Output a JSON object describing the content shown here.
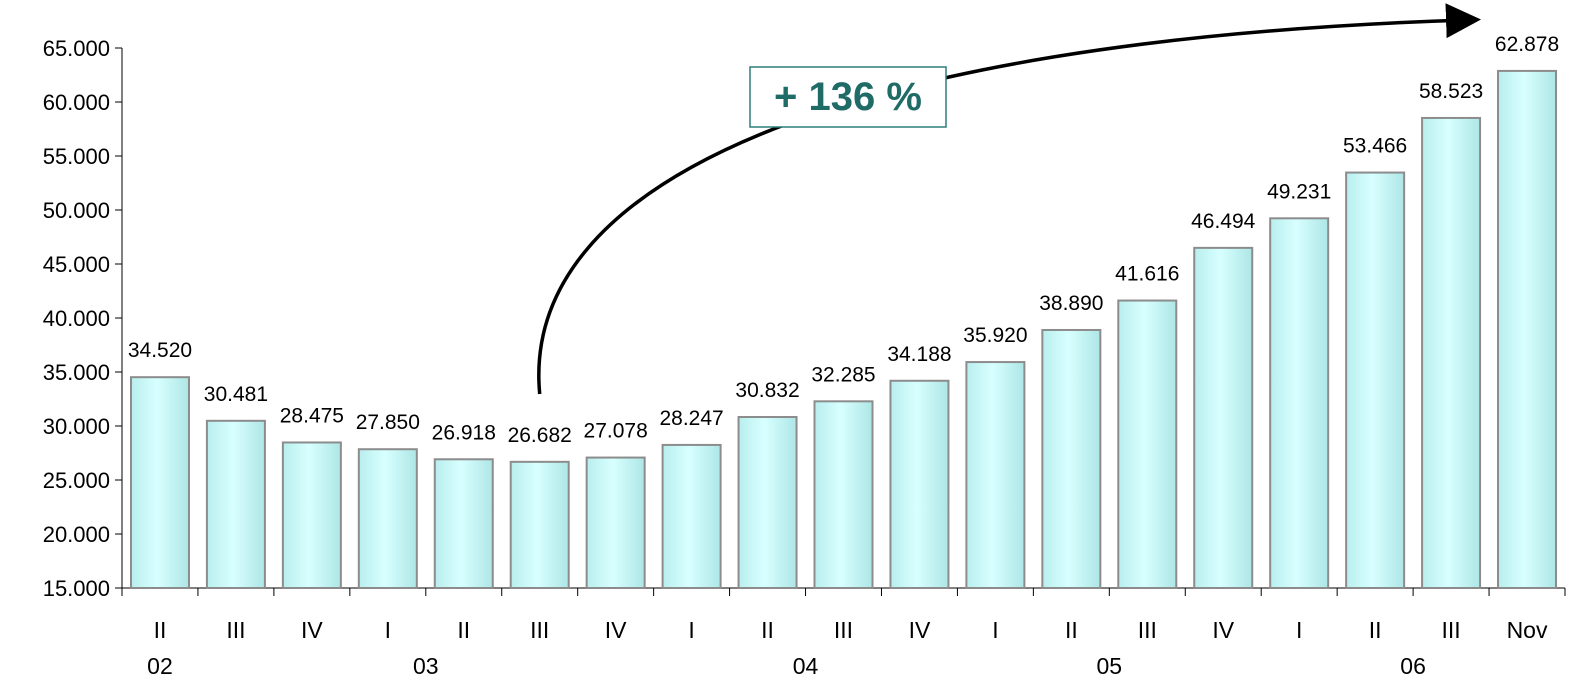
{
  "chart_data": {
    "type": "bar",
    "title": "",
    "xlabel": "",
    "ylabel": "",
    "ylim": [
      15000,
      65000
    ],
    "ytick_values": [
      15000,
      20000,
      25000,
      30000,
      35000,
      40000,
      45000,
      50000,
      55000,
      60000,
      65000
    ],
    "ytick_labels": [
      "15.000",
      "20.000",
      "25.000",
      "30.000",
      "35.000",
      "40.000",
      "45.000",
      "50.000",
      "55.000",
      "60.000",
      "65.000"
    ],
    "categories": [
      "II",
      "III",
      "IV",
      "I",
      "II",
      "III",
      "IV",
      "I",
      "II",
      "III",
      "IV",
      "I",
      "II",
      "III",
      "IV",
      "I",
      "II",
      "III",
      "Nov"
    ],
    "years": [
      {
        "label": "02",
        "start": 0,
        "end": 0
      },
      {
        "label": "03",
        "start": 1,
        "end": 6
      },
      {
        "label": "04",
        "start": 7,
        "end": 10
      },
      {
        "label": "05",
        "start": 11,
        "end": 14
      },
      {
        "label": "06",
        "start": 15,
        "end": 18
      }
    ],
    "values": [
      34520,
      30481,
      28475,
      27850,
      26918,
      26682,
      27078,
      28247,
      30832,
      32285,
      34188,
      35920,
      38890,
      41616,
      46494,
      49231,
      53466,
      58523,
      62878
    ],
    "data_labels": [
      "34.520",
      "30.481",
      "28.475",
      "27.850",
      "26.918",
      "26.682",
      "27.078",
      "28.247",
      "30.832",
      "32.285",
      "34.188",
      "35.920",
      "38.890",
      "41.616",
      "46.494",
      "49.231",
      "53.466",
      "58.523",
      "62.878"
    ],
    "annotation": {
      "text": "+ 136 %",
      "from_index": 5,
      "to_index": 18
    },
    "colors": {
      "bar_fill_top": "#ccffff",
      "bar_fill_bottom": "#a8e6e6",
      "bar_stroke": "#8c8c8c",
      "callout_text": "#1f6b66",
      "callout_border": "#2e7f7a"
    },
    "grid": false,
    "legend": "none"
  }
}
